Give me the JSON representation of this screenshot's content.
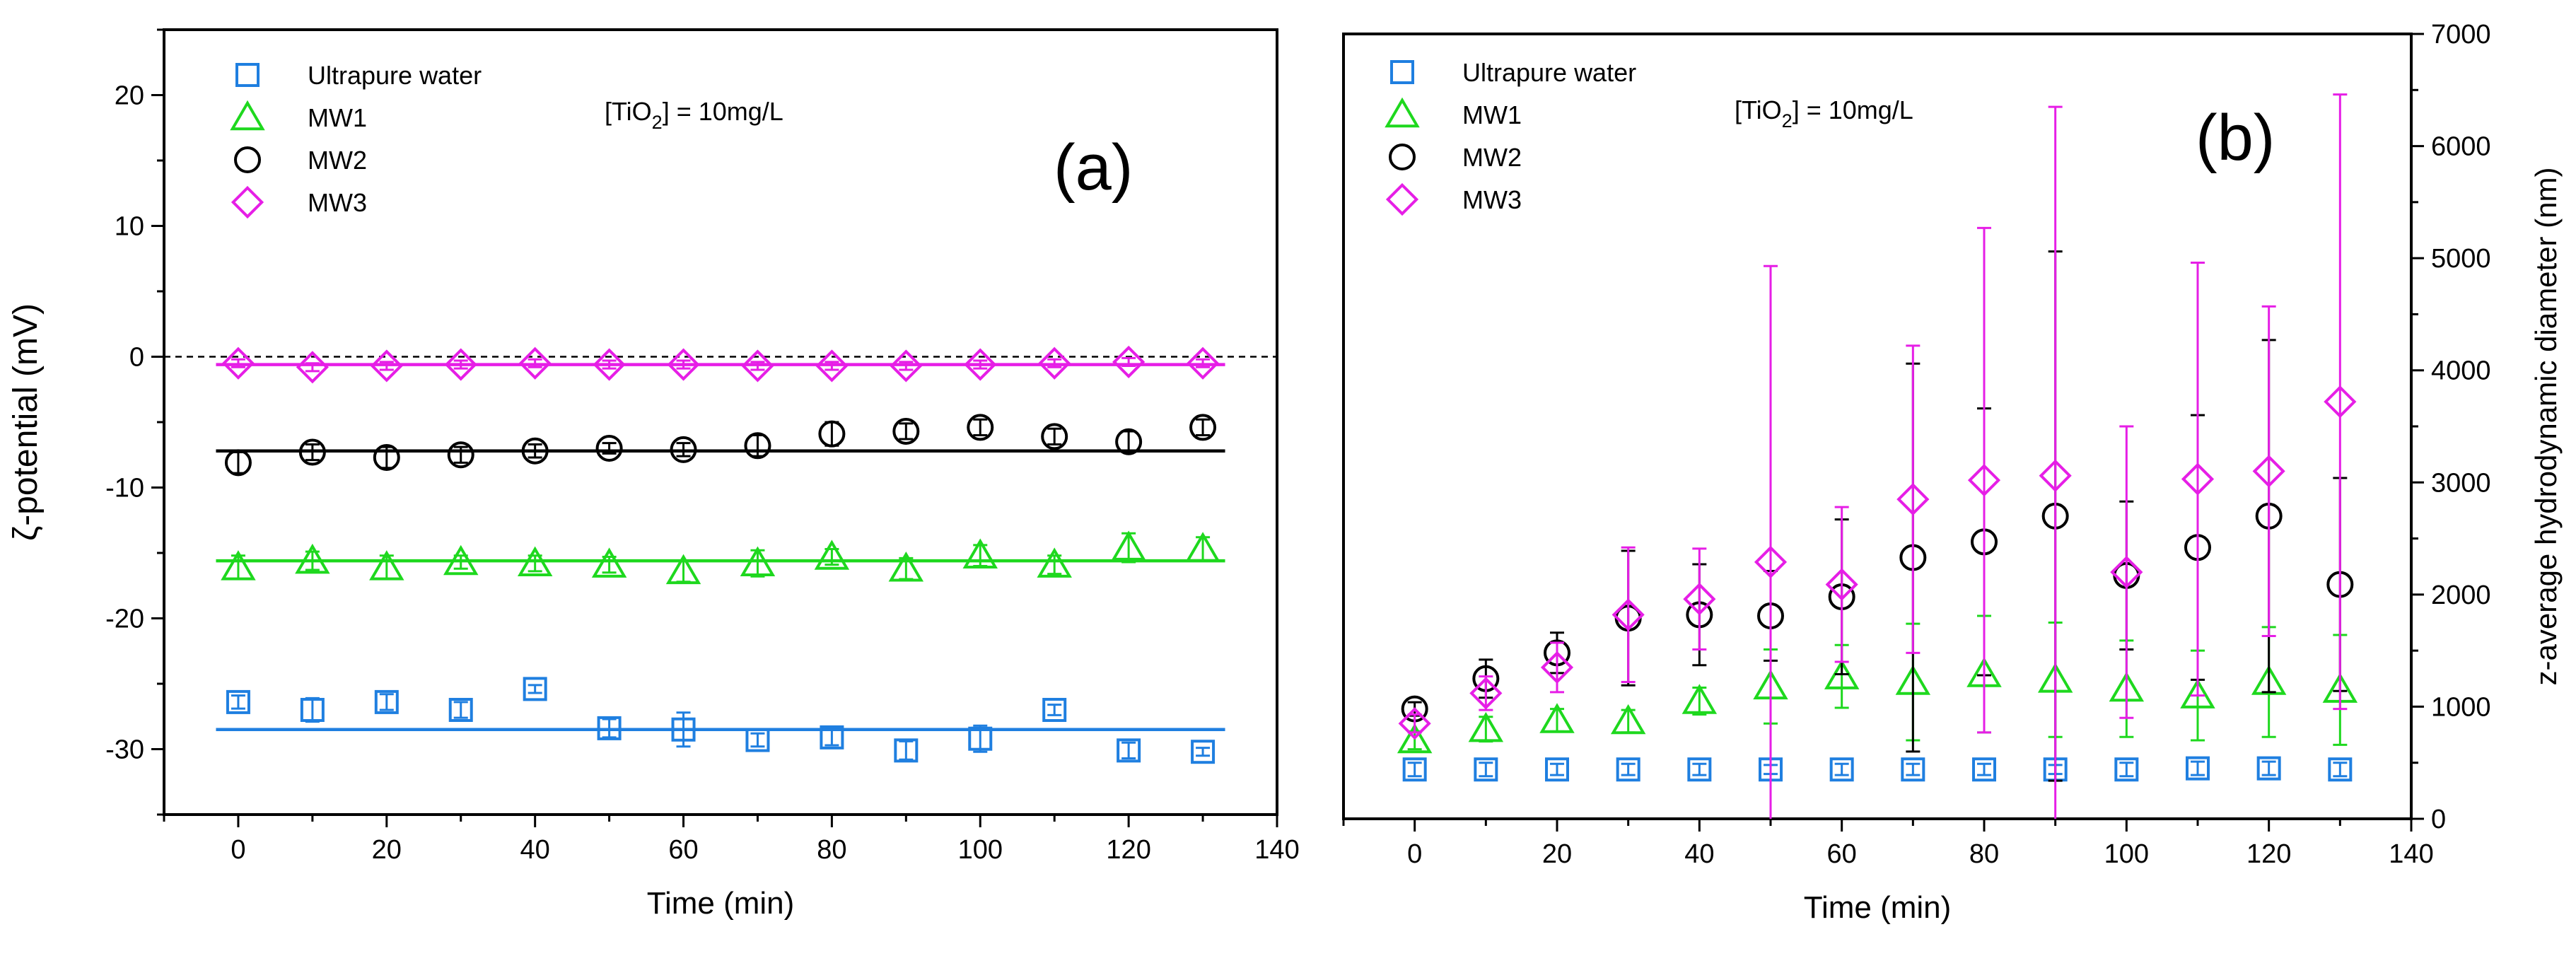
{
  "chart_data": [
    {
      "type": "scatter",
      "panel_label": "(a)",
      "annotation": {
        "prefix": "[TiO",
        "sub": "2",
        "suffix": "] = 10mg/L"
      },
      "xlabel": "Time (min)",
      "ylabel": "ζ-potential (mV)",
      "xlim": [
        -10,
        140
      ],
      "ylim": [
        -35,
        25
      ],
      "xticks": [
        0,
        20,
        40,
        60,
        80,
        100,
        120,
        140
      ],
      "yticks": [
        -30,
        -20,
        -10,
        0,
        10,
        20
      ],
      "reference_line": 0,
      "series": [
        {
          "name": "Ultrapure water",
          "marker": "square",
          "color": "#1f7fe0",
          "x": [
            0,
            10,
            20,
            30,
            40,
            50,
            60,
            70,
            80,
            90,
            100,
            110,
            120,
            130
          ],
          "y": [
            -26.4,
            -27.0,
            -26.4,
            -27.0,
            -25.4,
            -28.4,
            -28.5,
            -29.3,
            -29.1,
            -30.1,
            -29.2,
            -27.0,
            -30.1,
            -30.2
          ],
          "err": [
            0.5,
            0.9,
            0.6,
            0.6,
            0.3,
            0.7,
            1.3,
            0.5,
            0.6,
            0.7,
            1.0,
            0.4,
            0.6,
            0.3
          ],
          "fit": -28.5
        },
        {
          "name": "MW1",
          "marker": "triangle",
          "color": "#1ed81e",
          "x": [
            0,
            10,
            20,
            30,
            40,
            50,
            60,
            70,
            80,
            90,
            100,
            110,
            120,
            130
          ],
          "y": [
            -16.1,
            -15.6,
            -16.1,
            -15.7,
            -15.8,
            -15.9,
            -16.4,
            -15.8,
            -15.3,
            -16.2,
            -15.2,
            -15.9,
            -14.6,
            -14.7
          ],
          "err": [
            0.9,
            0.7,
            0.9,
            0.5,
            0.6,
            0.6,
            0.8,
            1.0,
            0.6,
            0.8,
            0.8,
            0.7,
            1.1,
            0.9
          ],
          "fit": -15.6
        },
        {
          "name": "MW2",
          "marker": "circle",
          "color": "#000000",
          "x": [
            0,
            10,
            20,
            30,
            40,
            50,
            60,
            70,
            80,
            90,
            100,
            110,
            120,
            130
          ],
          "y": [
            -8.1,
            -7.3,
            -7.7,
            -7.5,
            -7.2,
            -7.0,
            -7.1,
            -6.8,
            -5.9,
            -5.7,
            -5.4,
            -6.1,
            -6.5,
            -5.4
          ],
          "err": [
            0.8,
            0.6,
            0.8,
            0.6,
            0.5,
            0.4,
            0.5,
            0.8,
            0.9,
            0.6,
            0.6,
            0.6,
            0.8,
            0.6
          ],
          "fit": -7.2
        },
        {
          "name": "MW3",
          "marker": "diamond",
          "color": "#e61ee6",
          "x": [
            0,
            10,
            20,
            30,
            40,
            50,
            60,
            70,
            80,
            90,
            100,
            110,
            120,
            130
          ],
          "y": [
            -0.5,
            -0.8,
            -0.7,
            -0.6,
            -0.5,
            -0.6,
            -0.6,
            -0.7,
            -0.7,
            -0.7,
            -0.6,
            -0.5,
            -0.4,
            -0.5
          ],
          "err": [
            0.3,
            0.3,
            0.3,
            0.3,
            0.3,
            0.3,
            0.3,
            0.3,
            0.3,
            0.3,
            0.3,
            0.3,
            0.3,
            0.3
          ],
          "fit": -0.6
        }
      ]
    },
    {
      "type": "scatter",
      "panel_label": "(b)",
      "annotation": {
        "prefix": "[TiO",
        "sub": "2",
        "suffix": "] = 10mg/L"
      },
      "xlabel": "Time (min)",
      "ylabel": "z-average hydrodynamic diameter (nm)",
      "y_axis_side": "right",
      "xlim": [
        -10,
        140
      ],
      "ylim": [
        0,
        7000
      ],
      "xticks": [
        0,
        20,
        40,
        60,
        80,
        100,
        120,
        140
      ],
      "yticks": [
        0,
        1000,
        2000,
        3000,
        4000,
        5000,
        6000,
        7000
      ],
      "series": [
        {
          "name": "Ultrapure water",
          "marker": "square",
          "color": "#1f7fe0",
          "x": [
            0,
            10,
            20,
            30,
            40,
            50,
            60,
            70,
            80,
            90,
            100,
            110,
            120,
            130
          ],
          "y": [
            440,
            440,
            440,
            440,
            440,
            440,
            440,
            440,
            440,
            440,
            440,
            450,
            450,
            440
          ],
          "err": [
            60,
            60,
            50,
            50,
            50,
            40,
            50,
            50,
            50,
            40,
            60,
            60,
            60,
            60
          ]
        },
        {
          "name": "MW1",
          "marker": "triangle",
          "color": "#1ed81e",
          "x": [
            0,
            10,
            20,
            30,
            40,
            50,
            60,
            70,
            80,
            90,
            100,
            110,
            120,
            130
          ],
          "y": [
            700,
            800,
            880,
            870,
            1050,
            1180,
            1270,
            1220,
            1290,
            1240,
            1160,
            1100,
            1220,
            1150
          ],
          "err": [
            80,
            110,
            100,
            100,
            120,
            330,
            280,
            520,
            520,
            510,
            430,
            400,
            490,
            490
          ]
        },
        {
          "name": "MW2",
          "marker": "circle",
          "color": "#000000",
          "x": [
            0,
            10,
            20,
            30,
            40,
            50,
            60,
            70,
            80,
            90,
            100,
            110,
            120,
            130
          ],
          "y": [
            980,
            1250,
            1480,
            1790,
            1820,
            1810,
            1980,
            2330,
            2470,
            2700,
            2170,
            2420,
            2700,
            2090
          ],
          "err": [
            60,
            170,
            180,
            600,
            450,
            400,
            690,
            1730,
            1190,
            2360,
            660,
            1180,
            1570,
            950
          ]
        },
        {
          "name": "MW3",
          "marker": "diamond",
          "color": "#e61ee6",
          "x": [
            0,
            10,
            20,
            30,
            40,
            50,
            60,
            70,
            80,
            90,
            100,
            110,
            120,
            130
          ],
          "y": [
            850,
            1120,
            1350,
            1820,
            1960,
            2290,
            2090,
            2850,
            3020,
            3060,
            2200,
            3030,
            3100,
            3720
          ],
          "err": [
            80,
            150,
            220,
            600,
            450,
            2640,
            690,
            1370,
            2250,
            3290,
            1300,
            1930,
            1470,
            2740
          ]
        }
      ]
    }
  ]
}
